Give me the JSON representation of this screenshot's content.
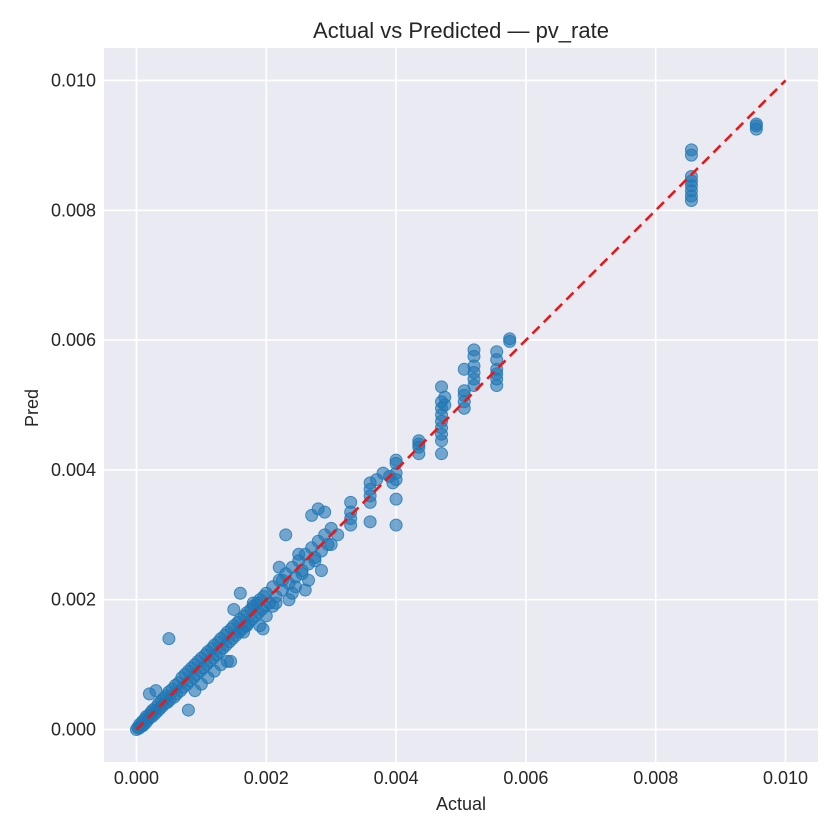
{
  "chart_data": {
    "type": "scatter",
    "title": "Actual vs Predicted — pv_rate",
    "xlabel": "Actual",
    "ylabel": "Pred",
    "xlim": [
      -0.0005,
      0.0105
    ],
    "ylim": [
      -0.0005,
      0.0105
    ],
    "x_ticks": [
      0.0,
      0.002,
      0.004,
      0.006,
      0.008,
      0.01
    ],
    "y_ticks": [
      0.0,
      0.002,
      0.004,
      0.006,
      0.008,
      0.01
    ],
    "x_tick_labels": [
      "0.000",
      "0.002",
      "0.004",
      "0.006",
      "0.008",
      "0.010"
    ],
    "y_tick_labels": [
      "0.000",
      "0.002",
      "0.004",
      "0.006",
      "0.008",
      "0.010"
    ],
    "grid": true,
    "point_color": "#1f77b4",
    "reference_line": {
      "x": [
        0.0,
        0.01
      ],
      "y": [
        0.0,
        0.01
      ],
      "color": "#e31a1c",
      "style": "dashed"
    },
    "points": [
      [
        0.0,
        0.0
      ],
      [
        2e-05,
        3e-05
      ],
      [
        4e-05,
        2e-05
      ],
      [
        5e-05,
        8e-05
      ],
      [
        7e-05,
        5e-05
      ],
      [
        9e-05,
        0.00012
      ],
      [
        0.0001,
        6e-05
      ],
      [
        0.00012,
        0.00015
      ],
      [
        0.00014,
        0.0001
      ],
      [
        0.00015,
        0.0002
      ],
      [
        0.00017,
        0.00014
      ],
      [
        0.00019,
        0.00022
      ],
      [
        0.0002,
        0.00018
      ],
      [
        0.00022,
        0.00026
      ],
      [
        0.00024,
        0.0002
      ],
      [
        0.00025,
        0.0003
      ],
      [
        0.00028,
        0.00024
      ],
      [
        0.0003,
        0.00034
      ],
      [
        0.00032,
        0.00028
      ],
      [
        0.00034,
        0.0004
      ],
      [
        0.00036,
        0.00032
      ],
      [
        0.00038,
        0.00044
      ],
      [
        0.0004,
        0.00036
      ],
      [
        0.00042,
        0.00048
      ],
      [
        0.00044,
        0.0004
      ],
      [
        0.00046,
        0.00052
      ],
      [
        0.00048,
        0.00042
      ],
      [
        0.0005,
        0.00058
      ],
      [
        0.00052,
        0.00046
      ],
      [
        0.00055,
        0.00062
      ],
      [
        0.00058,
        0.0005
      ],
      [
        0.0006,
        0.00068
      ],
      [
        0.00062,
        0.00055
      ],
      [
        0.00065,
        0.00072
      ],
      [
        0.00068,
        0.0006
      ],
      [
        0.0007,
        0.0008
      ],
      [
        0.00072,
        0.00065
      ],
      [
        0.00075,
        0.00085
      ],
      [
        0.00078,
        0.0007
      ],
      [
        0.0008,
        0.0009
      ],
      [
        0.00082,
        0.00075
      ],
      [
        0.00085,
        0.00095
      ],
      [
        0.00088,
        0.0008
      ],
      [
        0.0009,
        0.001
      ],
      [
        0.00092,
        0.00085
      ],
      [
        0.00095,
        0.00105
      ],
      [
        0.00098,
        0.0009
      ],
      [
        0.001,
        0.0011
      ],
      [
        0.00103,
        0.00095
      ],
      [
        0.00106,
        0.00115
      ],
      [
        0.00108,
        0.001
      ],
      [
        0.0011,
        0.0012
      ],
      [
        0.00113,
        0.00105
      ],
      [
        0.00116,
        0.00125
      ],
      [
        0.00118,
        0.0011
      ],
      [
        0.0012,
        0.0013
      ],
      [
        0.00123,
        0.00115
      ],
      [
        0.00126,
        0.00135
      ],
      [
        0.00128,
        0.0012
      ],
      [
        0.0013,
        0.0014
      ],
      [
        0.00133,
        0.00125
      ],
      [
        0.00136,
        0.00145
      ],
      [
        0.00138,
        0.0013
      ],
      [
        0.0014,
        0.0015
      ],
      [
        0.00143,
        0.00135
      ],
      [
        0.00146,
        0.00155
      ],
      [
        0.00148,
        0.0014
      ],
      [
        0.0015,
        0.0016
      ],
      [
        0.00153,
        0.00145
      ],
      [
        0.00156,
        0.00165
      ],
      [
        0.00158,
        0.0015
      ],
      [
        0.0016,
        0.0017
      ],
      [
        0.00163,
        0.00155
      ],
      [
        0.00166,
        0.00175
      ],
      [
        0.00168,
        0.0016
      ],
      [
        0.0017,
        0.0018
      ],
      [
        0.00173,
        0.00165
      ],
      [
        0.00176,
        0.00185
      ],
      [
        0.00178,
        0.0017
      ],
      [
        0.0018,
        0.0019
      ],
      [
        0.00183,
        0.00175
      ],
      [
        0.00186,
        0.00195
      ],
      [
        0.00188,
        0.0018
      ],
      [
        0.0019,
        0.002
      ],
      [
        0.00193,
        0.00185
      ],
      [
        0.00196,
        0.00205
      ],
      [
        0.00198,
        0.0019
      ],
      [
        0.002,
        0.0021
      ],
      [
        0.00205,
        0.00195
      ],
      [
        0.0021,
        0.0022
      ],
      [
        0.00215,
        0.00205
      ],
      [
        0.0022,
        0.0023
      ],
      [
        0.00225,
        0.00215
      ],
      [
        0.0023,
        0.0024
      ],
      [
        0.00235,
        0.00225
      ],
      [
        0.0024,
        0.0025
      ],
      [
        0.00245,
        0.00235
      ],
      [
        0.0025,
        0.0026
      ],
      [
        0.00255,
        0.00245
      ],
      [
        0.0026,
        0.0027
      ],
      [
        0.00265,
        0.00255
      ],
      [
        0.0027,
        0.0028
      ],
      [
        0.00275,
        0.00265
      ],
      [
        0.0028,
        0.0029
      ],
      [
        0.00285,
        0.00275
      ],
      [
        0.0029,
        0.003
      ],
      [
        0.00295,
        0.00285
      ],
      [
        0.003,
        0.0031
      ],
      [
        0.0003,
        0.0006
      ],
      [
        0.0002,
        0.00055
      ],
      [
        0.0005,
        0.0014
      ],
      [
        0.0008,
        0.0003
      ],
      [
        0.0009,
        0.0006
      ],
      [
        0.001,
        0.0007
      ],
      [
        0.0011,
        0.0008
      ],
      [
        0.0012,
        0.0009
      ],
      [
        0.0013,
        0.001
      ],
      [
        0.0014,
        0.00105
      ],
      [
        0.00145,
        0.00105
      ],
      [
        0.0015,
        0.00185
      ],
      [
        0.0016,
        0.0021
      ],
      [
        0.00165,
        0.0015
      ],
      [
        0.0017,
        0.0016
      ],
      [
        0.0018,
        0.00195
      ],
      [
        0.0019,
        0.0016
      ],
      [
        0.00195,
        0.00155
      ],
      [
        0.002,
        0.00175
      ],
      [
        0.0021,
        0.0019
      ],
      [
        0.00215,
        0.00195
      ],
      [
        0.0022,
        0.0025
      ],
      [
        0.00225,
        0.0023
      ],
      [
        0.0023,
        0.003
      ],
      [
        0.00235,
        0.002
      ],
      [
        0.0024,
        0.0021
      ],
      [
        0.00245,
        0.0022
      ],
      [
        0.0025,
        0.0027
      ],
      [
        0.00255,
        0.0024
      ],
      [
        0.0026,
        0.00215
      ],
      [
        0.00265,
        0.0023
      ],
      [
        0.0027,
        0.0033
      ],
      [
        0.00275,
        0.0026
      ],
      [
        0.0028,
        0.0034
      ],
      [
        0.00285,
        0.00245
      ],
      [
        0.0029,
        0.00335
      ],
      [
        0.003,
        0.00285
      ],
      [
        0.0031,
        0.003
      ],
      [
        0.0033,
        0.00315
      ],
      [
        0.0033,
        0.00325
      ],
      [
        0.0033,
        0.00335
      ],
      [
        0.0033,
        0.0035
      ],
      [
        0.0036,
        0.0032
      ],
      [
        0.0036,
        0.0035
      ],
      [
        0.0036,
        0.0036
      ],
      [
        0.0036,
        0.0037
      ],
      [
        0.0036,
        0.0038
      ],
      [
        0.0037,
        0.00385
      ],
      [
        0.0038,
        0.00395
      ],
      [
        0.0039,
        0.0039
      ],
      [
        0.00395,
        0.0038
      ],
      [
        0.004,
        0.00385
      ],
      [
        0.004,
        0.00395
      ],
      [
        0.004,
        0.0041
      ],
      [
        0.004,
        0.00415
      ],
      [
        0.004,
        0.00355
      ],
      [
        0.004,
        0.00315
      ],
      [
        0.00435,
        0.00425
      ],
      [
        0.00435,
        0.00435
      ],
      [
        0.00435,
        0.0044
      ],
      [
        0.00435,
        0.00445
      ],
      [
        0.0047,
        0.00425
      ],
      [
        0.0047,
        0.00445
      ],
      [
        0.0047,
        0.00455
      ],
      [
        0.0047,
        0.00465
      ],
      [
        0.0047,
        0.00475
      ],
      [
        0.0047,
        0.00485
      ],
      [
        0.0047,
        0.00495
      ],
      [
        0.0047,
        0.00505
      ],
      [
        0.0047,
        0.00528
      ],
      [
        0.00475,
        0.005
      ],
      [
        0.00475,
        0.00512
      ],
      [
        0.00505,
        0.00495
      ],
      [
        0.00505,
        0.00505
      ],
      [
        0.00505,
        0.00515
      ],
      [
        0.00505,
        0.00522
      ],
      [
        0.00505,
        0.00555
      ],
      [
        0.0052,
        0.0053
      ],
      [
        0.0052,
        0.0054
      ],
      [
        0.0052,
        0.0055
      ],
      [
        0.0052,
        0.0056
      ],
      [
        0.0052,
        0.00575
      ],
      [
        0.0052,
        0.00585
      ],
      [
        0.00555,
        0.0053
      ],
      [
        0.00555,
        0.0054
      ],
      [
        0.00555,
        0.00548
      ],
      [
        0.00555,
        0.00555
      ],
      [
        0.00555,
        0.0057
      ],
      [
        0.00555,
        0.00582
      ],
      [
        0.00575,
        0.00598
      ],
      [
        0.00575,
        0.00602
      ],
      [
        0.00855,
        0.00815
      ],
      [
        0.00855,
        0.00822
      ],
      [
        0.00855,
        0.0083
      ],
      [
        0.00855,
        0.00838
      ],
      [
        0.00855,
        0.00845
      ],
      [
        0.00855,
        0.00852
      ],
      [
        0.00855,
        0.00885
      ],
      [
        0.00855,
        0.00893
      ],
      [
        0.00955,
        0.00925
      ],
      [
        0.00955,
        0.0093
      ],
      [
        0.00955,
        0.00933
      ]
    ]
  }
}
